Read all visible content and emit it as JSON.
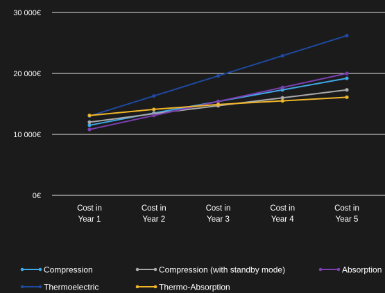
{
  "chart_data": {
    "type": "line",
    "title": "",
    "xlabel": "",
    "ylabel": "",
    "categories": [
      [
        "Cost in",
        "Year 1"
      ],
      [
        "Cost in",
        "Year 2"
      ],
      [
        "Cost in",
        "Year 3"
      ],
      [
        "Cost in",
        "Year 4"
      ],
      [
        "Cost in",
        "Year 5"
      ]
    ],
    "ylim": [
      0,
      30000
    ],
    "yticks": [
      {
        "value": 0,
        "label": "0€"
      },
      {
        "value": 10000,
        "label": "10 000€"
      },
      {
        "value": 20000,
        "label": "20 000€"
      },
      {
        "value": 30000,
        "label": "30 000€"
      }
    ],
    "grid": true,
    "legend_position": "bottom",
    "series": [
      {
        "name": "Compression",
        "color": "#3fa8e8",
        "values": [
          11500,
          13500,
          15400,
          17300,
          19200
        ]
      },
      {
        "name": "Compression (with standby mode)",
        "color": "#a9a9a9",
        "values": [
          12000,
          13400,
          14700,
          16000,
          17300
        ]
      },
      {
        "name": "Absorption",
        "color": "#7b3fb0",
        "values": [
          10800,
          13100,
          15400,
          17700,
          20000
        ]
      },
      {
        "name": "Thermoelectric",
        "color": "#1e4aa0",
        "values": [
          13000,
          16300,
          19600,
          22900,
          26200
        ]
      },
      {
        "name": "Thermo-Absorption",
        "color": "#f0b62a",
        "values": [
          13100,
          14100,
          14900,
          15500,
          16100
        ]
      }
    ]
  }
}
